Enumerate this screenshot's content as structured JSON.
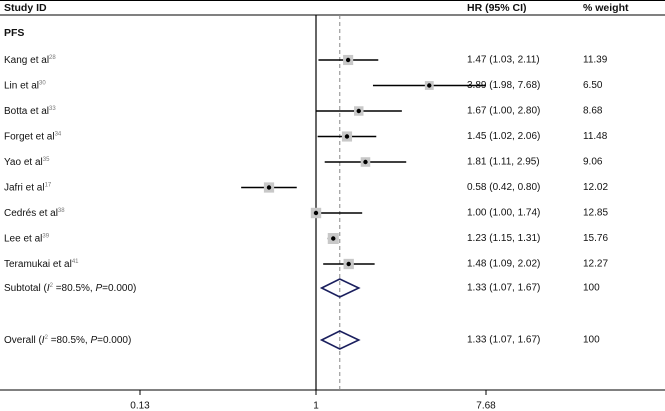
{
  "chart_data": {
    "type": "forest",
    "headers": {
      "study": "Study ID",
      "hr": "HR (95% CI)",
      "weight": "% weight"
    },
    "subgroup": "PFS",
    "x_scale": "log",
    "x_ticks": [
      {
        "value": 0.13,
        "label": "0.13"
      },
      {
        "value": 1,
        "label": "1"
      },
      {
        "value": 7.68,
        "label": "7.68"
      }
    ],
    "reference_line": 1,
    "pooled_line": 1.33,
    "studies": [
      {
        "name": "Kang et al",
        "ref": "28",
        "hr": 1.47,
        "lo": 1.03,
        "hi": 2.11,
        "hr_text": "1.47 (1.03, 2.11)",
        "weight": "11.39"
      },
      {
        "name": "Lin et al",
        "ref": "30",
        "hr": 3.89,
        "lo": 1.98,
        "hi": 7.68,
        "hr_text": "3.89 (1.98, 7.68)",
        "weight": "6.50"
      },
      {
        "name": "Botta et al",
        "ref": "33",
        "hr": 1.67,
        "lo": 1.0,
        "hi": 2.8,
        "hr_text": "1.67 (1.00, 2.80)",
        "weight": "8.68"
      },
      {
        "name": "Forget et al",
        "ref": "34",
        "hr": 1.45,
        "lo": 1.02,
        "hi": 2.06,
        "hr_text": "1.45 (1.02, 2.06)",
        "weight": "11.48"
      },
      {
        "name": "Yao et al",
        "ref": "35",
        "hr": 1.81,
        "lo": 1.11,
        "hi": 2.95,
        "hr_text": "1.81 (1.11, 2.95)",
        "weight": "9.06"
      },
      {
        "name": "Jafri et al",
        "ref": "17",
        "hr": 0.58,
        "lo": 0.42,
        "hi": 0.8,
        "hr_text": "0.58 (0.42, 0.80)",
        "weight": "12.02"
      },
      {
        "name": "Cedrés et al",
        "ref": "38",
        "hr": 1.0,
        "lo": 1.0,
        "hi": 1.74,
        "hr_text": "1.00 (1.00, 1.74)",
        "weight": "12.85"
      },
      {
        "name": "Lee et al",
        "ref": "39",
        "hr": 1.23,
        "lo": 1.15,
        "hi": 1.31,
        "hr_text": "1.23 (1.15, 1.31)",
        "weight": "15.76"
      },
      {
        "name": "Teramukai et al",
        "ref": "41",
        "hr": 1.48,
        "lo": 1.09,
        "hi": 2.02,
        "hr_text": "1.48 (1.09, 2.02)",
        "weight": "12.27"
      }
    ],
    "subtotal": {
      "label_pre": "Subtotal (",
      "i2": "I",
      "i2_sup": "2",
      "label_stat": " =80.5%, ",
      "p": "P",
      "label_post": "=0.000)",
      "hr": 1.33,
      "lo": 1.07,
      "hi": 1.67,
      "hr_text": "1.33 (1.07, 1.67)",
      "weight": "100"
    },
    "overall": {
      "label_pre": "Overall (",
      "i2": "I",
      "i2_sup": "2",
      "label_stat": " =80.5%, ",
      "p": "P",
      "label_post": "=0.000)",
      "hr": 1.33,
      "lo": 1.07,
      "hi": 1.67,
      "hr_text": "1.33 (1.07, 1.67)",
      "weight": "100"
    },
    "colors": {
      "box": "#c8c8c8",
      "diamond": "#1a1f5e",
      "line": "#000000",
      "dashed": "#888888"
    }
  }
}
